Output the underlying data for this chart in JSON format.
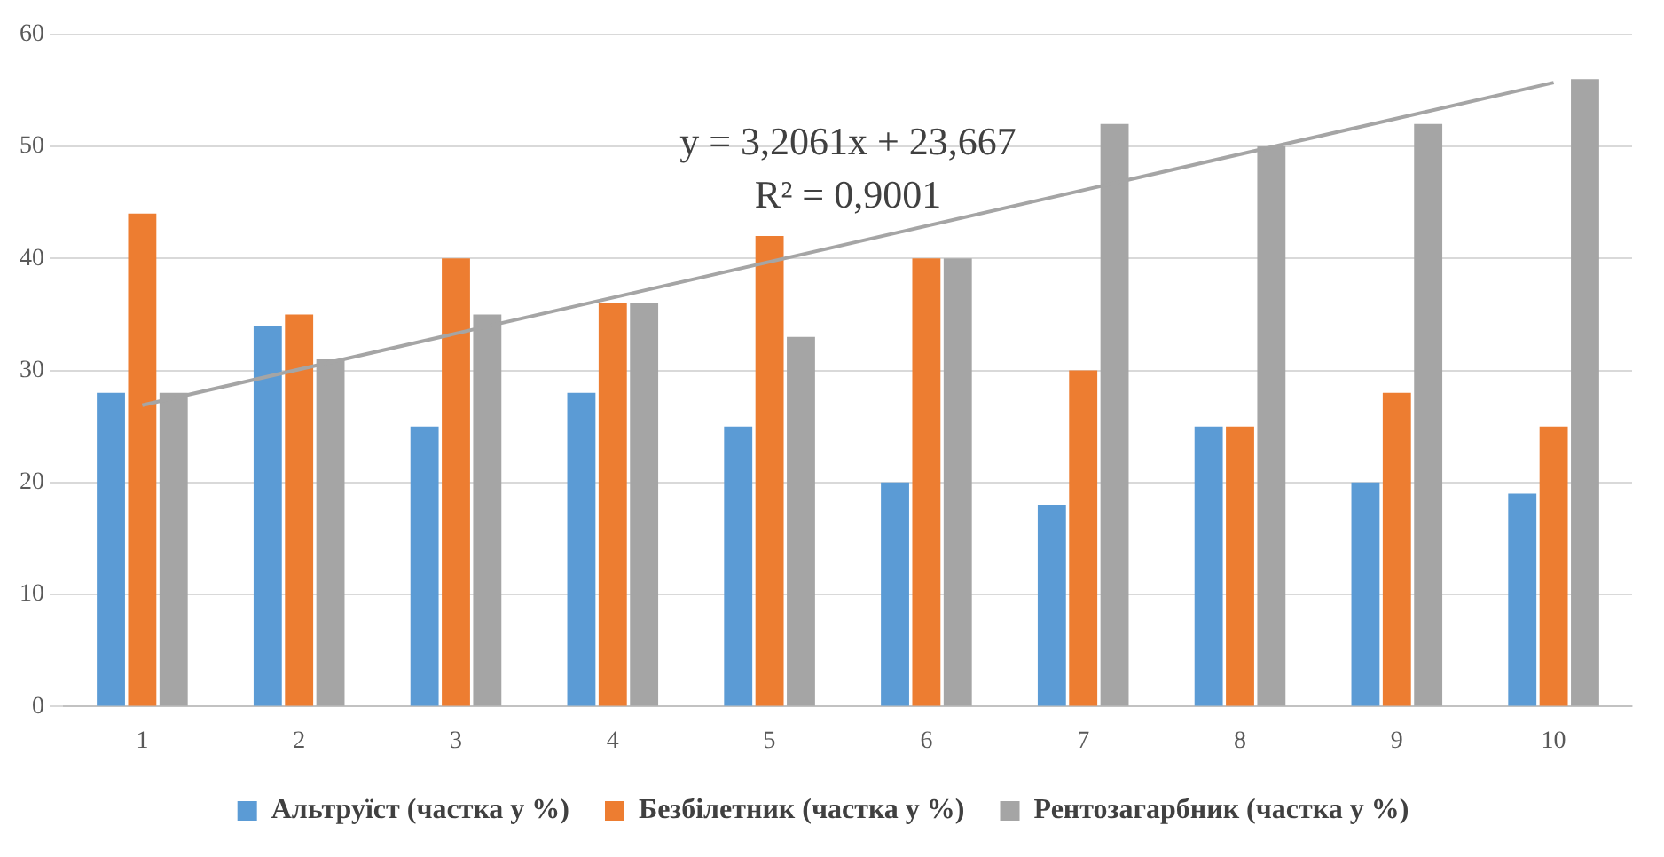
{
  "chart_data": {
    "type": "bar",
    "categories": [
      "1",
      "2",
      "3",
      "4",
      "5",
      "6",
      "7",
      "8",
      "9",
      "10"
    ],
    "series": [
      {
        "name": "Альтруїст (частка у %)",
        "color": "#5b9bd5",
        "values": [
          28,
          34,
          25,
          28,
          25,
          20,
          18,
          25,
          20,
          19
        ]
      },
      {
        "name": "Безбілетник (частка у %)",
        "color": "#ed7d31",
        "values": [
          44,
          35,
          40,
          36,
          42,
          40,
          30,
          25,
          28,
          25
        ]
      },
      {
        "name": "Рентозагарбник (частка у %)",
        "color": "#a5a5a5",
        "values": [
          28,
          31,
          35,
          36,
          33,
          40,
          52,
          50,
          52,
          56
        ]
      },
      {
        "type": "line",
        "color": "#a5a5a5",
        "values": [
          26.9,
          null,
          null,
          null,
          null,
          null,
          null,
          null,
          null,
          55.7
        ]
      }
    ],
    "ylim": [
      0,
      60
    ],
    "yticks": [
      0,
      10,
      20,
      30,
      40,
      50,
      60
    ],
    "grid": "y",
    "legend": "bottom",
    "marker": "none",
    "annotations": [
      "y = 3,2061x + 23,667",
      "R² = 0,9001"
    ]
  }
}
